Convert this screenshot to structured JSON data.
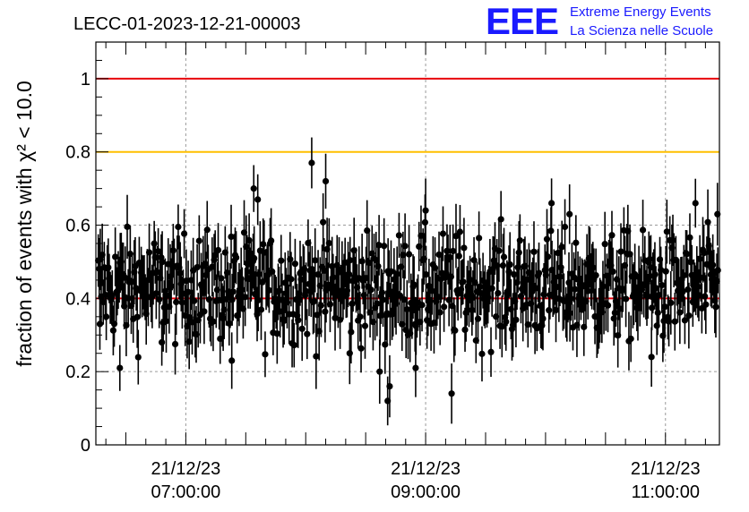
{
  "title": "LECC-01-2023-12-21-00003",
  "logo": {
    "mark": "EEE",
    "line1": "Extreme Energy Events",
    "line2": "La Scienza nelle Scuole",
    "color": "#1a1aff"
  },
  "chart_data": {
    "type": "scatter",
    "ylabel": "fraction of events with χ² < 10.0",
    "ylim": [
      0,
      1.1
    ],
    "y_ticks": [
      "0",
      "0.2",
      "0.4",
      "0.6",
      "0.8",
      "1"
    ],
    "xlim_hours": [
      6.25,
      11.45
    ],
    "x_ticks": [
      {
        "hour": 7,
        "line1": "21/12/23",
        "line2": "07:00:00"
      },
      {
        "hour": 9,
        "line1": "21/12/23",
        "line2": "09:00:00"
      },
      {
        "hour": 11,
        "line1": "21/12/23",
        "line2": "11:00:00"
      }
    ],
    "grid": true,
    "reference_lines": [
      {
        "y": 1.0,
        "color": "#e8000b"
      },
      {
        "y": 0.8,
        "color": "#ffbf00"
      },
      {
        "y": 0.4,
        "color": "#e8000b"
      }
    ],
    "series": [
      {
        "marker": "circle",
        "color": "#000000",
        "mean": 0.43,
        "spread": 0.09,
        "error": 0.075,
        "highlighted_points": [
          {
            "time": "06:17",
            "value": 0.33
          },
          {
            "time": "06:27",
            "value": 0.21
          },
          {
            "time": "06:48",
            "value": 0.28
          },
          {
            "time": "07:23",
            "value": 0.23
          },
          {
            "time": "07:34",
            "value": 0.7
          },
          {
            "time": "07:36",
            "value": 0.67
          },
          {
            "time": "08:03",
            "value": 0.77
          },
          {
            "time": "08:10",
            "value": 0.72
          },
          {
            "time": "08:22",
            "value": 0.25
          },
          {
            "time": "08:37",
            "value": 0.2
          },
          {
            "time": "08:41",
            "value": 0.12
          },
          {
            "time": "08:42",
            "value": 0.16
          },
          {
            "time": "08:55",
            "value": 0.21
          },
          {
            "time": "09:00",
            "value": 0.64
          },
          {
            "time": "09:13",
            "value": 0.14
          },
          {
            "time": "10:03",
            "value": 0.66
          },
          {
            "time": "10:12",
            "value": 0.63
          },
          {
            "time": "10:53",
            "value": 0.24
          },
          {
            "time": "11:15",
            "value": 0.66
          },
          {
            "time": "11:26",
            "value": 0.63
          }
        ]
      }
    ]
  }
}
